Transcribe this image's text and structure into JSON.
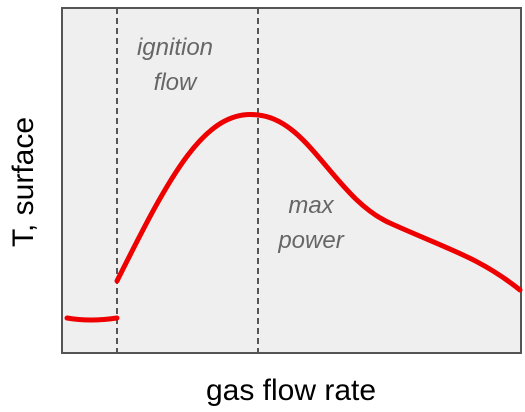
{
  "chart_data": {
    "type": "line",
    "title": "",
    "xlabel": "gas flow rate",
    "ylabel": "T, surface",
    "xticks": false,
    "yticks": false,
    "grid": false,
    "colors": {
      "background": "#efefef",
      "frame": "#555555",
      "series": "#ee0000",
      "marker_line": "#555555",
      "annotation_text": "#666666"
    },
    "series": [
      {
        "segment": "pre-ignition",
        "points": [
          [
            0.0,
            0.1
          ],
          [
            0.055,
            0.095
          ],
          [
            0.11,
            0.1
          ]
        ]
      },
      {
        "segment": "ignited",
        "points": [
          [
            0.11,
            0.205
          ],
          [
            0.18,
            0.43
          ],
          [
            0.26,
            0.62
          ],
          [
            0.33,
            0.69
          ],
          [
            0.42,
            0.65
          ],
          [
            0.52,
            0.51
          ],
          [
            0.65,
            0.375
          ],
          [
            0.8,
            0.285
          ],
          [
            0.9,
            0.23
          ],
          [
            1.0,
            0.175
          ]
        ]
      }
    ],
    "vlines": [
      {
        "x": 0.11,
        "style": "dashed"
      },
      {
        "x": 0.43,
        "style": "dashed"
      }
    ],
    "annotations": [
      {
        "lines": [
          "ignition",
          "flow"
        ],
        "x": 0.24,
        "y": 0.89
      },
      {
        "lines": [
          "max",
          "power"
        ],
        "x": 0.54,
        "y": 0.38
      }
    ]
  }
}
